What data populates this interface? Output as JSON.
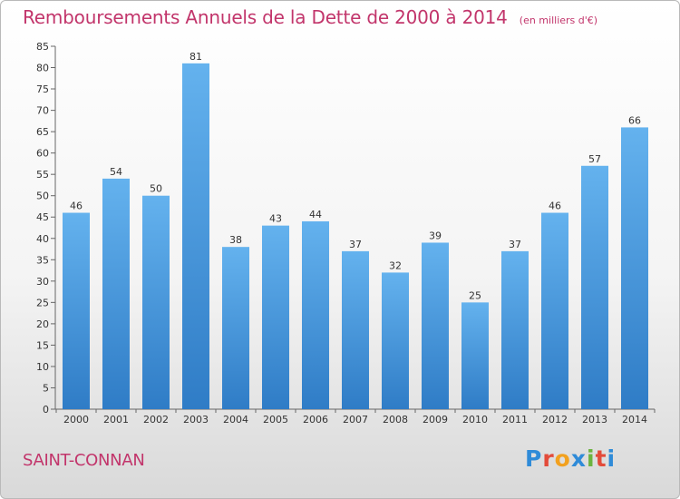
{
  "title": "Remboursements Annuels de la Dette de 2000 à 2014",
  "subtitle": "(en milliers d'€)",
  "place": "SAINT-CONNAN",
  "logo": {
    "letters": [
      "P",
      "r",
      "o",
      "x",
      "i",
      "t",
      "i"
    ],
    "colors": [
      "#2f8bd8",
      "#e34b3a",
      "#f2a11f",
      "#2f8bd8",
      "#6cb33f",
      "#e34b3a",
      "#2f8bd8"
    ]
  },
  "colors": {
    "bar": "#4d9fe0",
    "bar_light": "#64b2ee",
    "bar_dark": "#2f7cc6",
    "title": "#c2356b"
  },
  "chart_data": {
    "type": "bar",
    "title": "Remboursements Annuels de la Dette de 2000 à 2014",
    "categories": [
      "2000",
      "2001",
      "2002",
      "2003",
      "2004",
      "2005",
      "2006",
      "2007",
      "2008",
      "2009",
      "2010",
      "2011",
      "2012",
      "2013",
      "2014"
    ],
    "values": [
      46,
      54,
      50,
      81,
      38,
      43,
      44,
      37,
      32,
      39,
      25,
      37,
      46,
      57,
      66
    ],
    "ylim": [
      0,
      85
    ],
    "yticks": [
      0,
      5,
      10,
      15,
      20,
      25,
      30,
      35,
      40,
      45,
      50,
      55,
      60,
      65,
      70,
      75,
      80,
      85
    ],
    "grid": false,
    "legend": "none"
  }
}
